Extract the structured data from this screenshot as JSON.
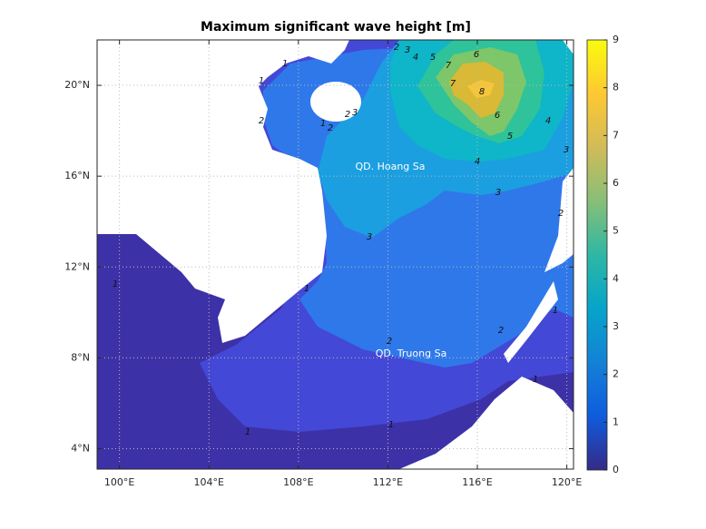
{
  "title": "Maximum significant wave height [m]",
  "map": {
    "xlim": [
      99,
      120.3
    ],
    "ylim": [
      3.1,
      22
    ],
    "xticks": [
      {
        "value": 100,
        "label": "100°E"
      },
      {
        "value": 104,
        "label": "104°E"
      },
      {
        "value": 108,
        "label": "108°E"
      },
      {
        "value": 112,
        "label": "112°E"
      },
      {
        "value": 116,
        "label": "116°E"
      },
      {
        "value": 120,
        "label": "120°E"
      }
    ],
    "yticks": [
      {
        "value": 4,
        "label": "4°N"
      },
      {
        "value": 8,
        "label": "8°N"
      },
      {
        "value": 12,
        "label": "12°N"
      },
      {
        "value": 16,
        "label": "16°N"
      },
      {
        "value": 20,
        "label": "20°N"
      }
    ],
    "grid": true,
    "places": [
      "QD. Hoang Sa",
      "QD. Truong Sa"
    ],
    "contour_labels": [
      2,
      3,
      4,
      5,
      6,
      7,
      7,
      8,
      6,
      5,
      4,
      3,
      4,
      3,
      3,
      2,
      1,
      2,
      2,
      1,
      1,
      1,
      1,
      1,
      2,
      1,
      1,
      1,
      2,
      2,
      3
    ]
  },
  "colorbar": {
    "lim": [
      0,
      9
    ],
    "ticks": [
      0,
      1,
      2,
      3,
      4,
      5,
      6,
      7,
      8,
      9
    ],
    "colormap": [
      "#352a87",
      "#0f5cdd",
      "#1481d6",
      "#06a4ca",
      "#2eb7a4",
      "#87bf77",
      "#d1bb59",
      "#fec832",
      "#f9fb0e"
    ]
  }
}
